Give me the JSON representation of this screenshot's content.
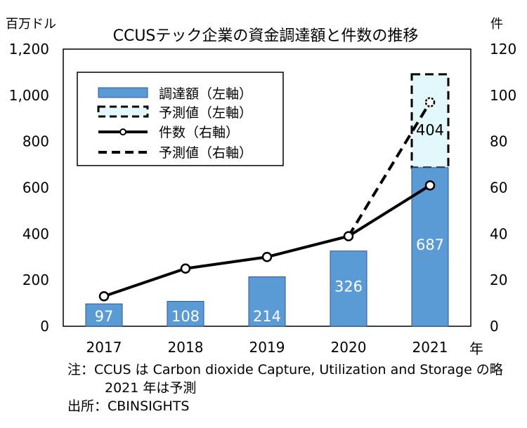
{
  "chart_data": {
    "type": "bar+line",
    "title": "CCUSテック企業の資金調達額と件数の推移",
    "left_axis": {
      "unit": "百万ドル",
      "ylim": [
        0,
        1200
      ],
      "ticks": [
        0,
        200,
        400,
        600,
        800,
        1000,
        1200
      ],
      "tick_labels": [
        "0",
        "200",
        "400",
        "600",
        "800",
        "1,000",
        "1,200"
      ]
    },
    "right_axis": {
      "unit": "件",
      "ylim": [
        0,
        120
      ],
      "ticks": [
        0,
        20,
        40,
        60,
        80,
        100,
        120
      ],
      "tick_labels": [
        "0",
        "20",
        "40",
        "60",
        "80",
        "100",
        "120"
      ]
    },
    "x_unit": "年",
    "categories": [
      "2017",
      "2018",
      "2019",
      "2020",
      "2021"
    ],
    "series": [
      {
        "name": "調達額（左軸）",
        "kind": "bar",
        "axis": "left",
        "values": [
          97,
          108,
          214,
          326,
          687
        ],
        "labels": [
          "97",
          "108",
          "214",
          "326",
          "687"
        ]
      },
      {
        "name": "予測値（左軸）",
        "kind": "bar-stack-forecast",
        "axis": "left",
        "values": [
          null,
          null,
          null,
          null,
          404
        ],
        "labels": [
          "",
          "",
          "",
          "",
          "404"
        ]
      },
      {
        "name": "件数（右軸）",
        "kind": "line",
        "axis": "right",
        "values": [
          13,
          25,
          30,
          39,
          61
        ]
      },
      {
        "name": "予測値（右軸）",
        "kind": "line-forecast",
        "axis": "right",
        "values": [
          null,
          null,
          null,
          39,
          97
        ]
      }
    ],
    "legend": [
      "調達額（左軸）",
      "予測値（左軸）",
      "件数（右軸）",
      "予測値（右軸）"
    ],
    "legend_position": "top-left",
    "colors": {
      "bar": "#5b9bd5",
      "bar_border": "#2f5597",
      "forecast_fill": "#e3f8fa",
      "line": "#000000",
      "bar_label": "#ffffff"
    }
  },
  "notes": {
    "line1": "注：CCUS は Carbon dioxide Capture, Utilization and Storage の略",
    "line2": "2021 年は予測",
    "source": "出所：CBINSIGHTS"
  }
}
